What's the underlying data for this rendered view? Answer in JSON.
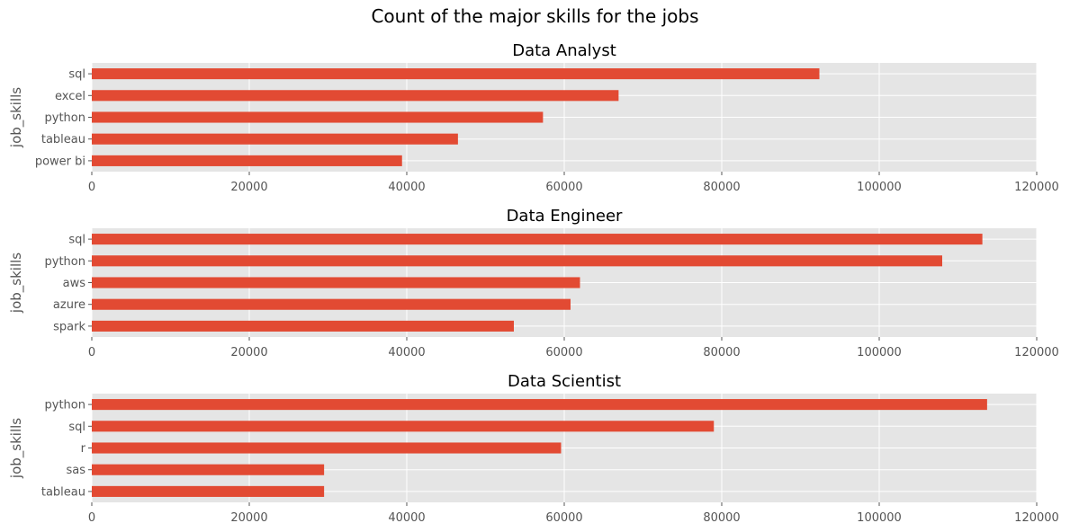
{
  "figure_title": "Count of the major skills for the jobs",
  "colors": {
    "bar": "#E24A33",
    "plot_bg": "#E5E5E5",
    "grid": "#FFFFFF",
    "tick_text": "#555555",
    "title_text": "#000000"
  },
  "chart_data": [
    {
      "type": "bar",
      "orientation": "horizontal",
      "title": "Data Analyst",
      "ylabel": "job_skills",
      "xlabel": "",
      "xlim": [
        0,
        120000
      ],
      "xticks": [
        0,
        20000,
        40000,
        60000,
        80000,
        100000,
        120000
      ],
      "categories": [
        "sql",
        "excel",
        "python",
        "tableau",
        "power bi"
      ],
      "values": [
        92400,
        66900,
        57300,
        46500,
        39400
      ],
      "grid": true
    },
    {
      "type": "bar",
      "orientation": "horizontal",
      "title": "Data Engineer",
      "ylabel": "job_skills",
      "xlabel": "",
      "xlim": [
        0,
        120000
      ],
      "xticks": [
        0,
        20000,
        40000,
        60000,
        80000,
        100000,
        120000
      ],
      "categories": [
        "sql",
        "python",
        "aws",
        "azure",
        "spark"
      ],
      "values": [
        113100,
        108000,
        62000,
        60800,
        53600
      ],
      "grid": true
    },
    {
      "type": "bar",
      "orientation": "horizontal",
      "title": "Data Scientist",
      "ylabel": "job_skills",
      "xlabel": "",
      "xlim": [
        0,
        120000
      ],
      "xticks": [
        0,
        20000,
        40000,
        60000,
        80000,
        100000,
        120000
      ],
      "categories": [
        "python",
        "sql",
        "r",
        "sas",
        "tableau"
      ],
      "values": [
        113700,
        79000,
        59600,
        29500,
        29500
      ],
      "grid": true
    }
  ]
}
